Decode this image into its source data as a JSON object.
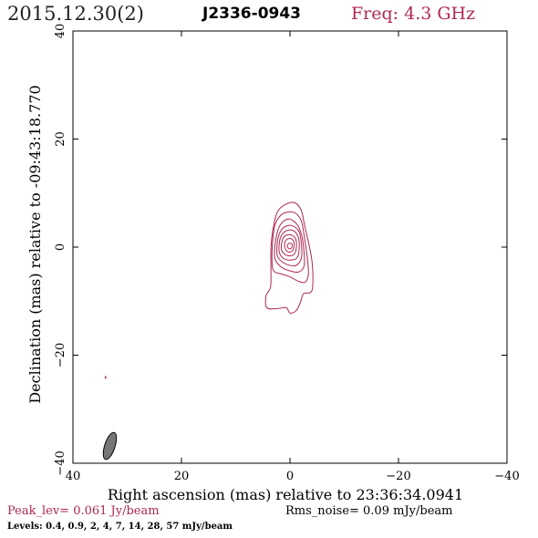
{
  "header": {
    "date": "2015.12.30(2)",
    "source": "J2336-0943",
    "frequency": "Freq: 4.3 GHz"
  },
  "footer": {
    "peak": "Peak_lev=  0.061 Jy/beam",
    "rms": "Rms_noise= 0.09 mJy/beam",
    "levels": "Levels: 0.4, 0.9,   2,   4,   7,  14,  28,  57 mJy/beam"
  },
  "colors": {
    "contour": "#b0284f",
    "frequency_text": "#b0284f",
    "peak_text": "#b0284f",
    "beam_fill": "#777777",
    "axis": "#000000"
  },
  "chart_data": {
    "type": "contour",
    "xlabel": "Right ascension (mas) relative to 23:36:34.0941",
    "ylabel": "Declination (mas) relative to -09:43:18.770",
    "xlim": [
      40,
      -40
    ],
    "ylim": [
      -40,
      40
    ],
    "xticks": [
      40,
      20,
      0,
      -20,
      -40
    ],
    "yticks": [
      -40,
      -20,
      0,
      20,
      40
    ],
    "xtick_labels": [
      "40",
      "20",
      "0",
      "−20",
      "−40"
    ],
    "ytick_labels": [
      "−40",
      "−20",
      "0",
      "20",
      "40"
    ],
    "contour_levels_mjy": [
      0.4,
      0.9,
      2,
      4,
      7,
      14,
      28,
      57
    ],
    "peak_jy_per_beam": 0.061,
    "rms_noise_mjy_per_beam": 0.09,
    "source_component": {
      "ra_mas": 0,
      "dec_mas": 0
    },
    "contours": [
      {
        "level": 0.4,
        "points": [
          [
            3.5,
            -5
          ],
          [
            3.5,
            0
          ],
          [
            3,
            4
          ],
          [
            2,
            7
          ],
          [
            -0.5,
            8.3
          ],
          [
            -2,
            7
          ],
          [
            -2.7,
            4
          ],
          [
            -3.6,
            0
          ],
          [
            -4.1,
            -3
          ],
          [
            -4.2,
            -7
          ],
          [
            -3.8,
            -8.4
          ],
          [
            -2.5,
            -8.6
          ],
          [
            -2,
            -10
          ],
          [
            -1.2,
            -11.7
          ],
          [
            0,
            -12.2
          ],
          [
            0.7,
            -11.2
          ],
          [
            2.5,
            -11.4
          ],
          [
            4.3,
            -11.2
          ],
          [
            4.4,
            -9
          ],
          [
            3.6,
            -7.5
          ]
        ]
      },
      {
        "level": 0.9,
        "points": [
          [
            3.3,
            -3
          ],
          [
            3.2,
            1
          ],
          [
            2.7,
            4.3
          ],
          [
            1.3,
            6.2
          ],
          [
            -0.8,
            6.4
          ],
          [
            -2.1,
            4.8
          ],
          [
            -2.7,
            1.5
          ],
          [
            -3.2,
            -2
          ],
          [
            -3.4,
            -5
          ],
          [
            -2.8,
            -6.5
          ],
          [
            -1.5,
            -6.3
          ],
          [
            0,
            -5.5
          ],
          [
            1.5,
            -5
          ],
          [
            2.9,
            -4.5
          ]
        ]
      },
      {
        "level": 2,
        "points": [
          [
            2.8,
            -2
          ],
          [
            2.6,
            1.5
          ],
          [
            1.8,
            4.1
          ],
          [
            0.3,
            5.2
          ],
          [
            -1.3,
            4.2
          ],
          [
            -2.2,
            2
          ],
          [
            -2.6,
            -1
          ],
          [
            -2.6,
            -3.5
          ],
          [
            -1.6,
            -4.6
          ],
          [
            0,
            -4.4
          ],
          [
            1.6,
            -3.7
          ]
        ]
      },
      {
        "level": 4,
        "points": [
          [
            2.4,
            -1.2
          ],
          [
            2.2,
            1.7
          ],
          [
            1.3,
            3.5
          ],
          [
            -0.2,
            4
          ],
          [
            -1.6,
            3
          ],
          [
            -2.1,
            0.7
          ],
          [
            -2.1,
            -2
          ],
          [
            -1.1,
            -3.4
          ],
          [
            0.6,
            -3.2
          ],
          [
            1.8,
            -2.4
          ]
        ]
      },
      {
        "level": 7,
        "points": [
          [
            2,
            -0.8
          ],
          [
            1.8,
            1.6
          ],
          [
            0.9,
            2.9
          ],
          [
            -0.5,
            3.1
          ],
          [
            -1.5,
            1.9
          ],
          [
            -1.7,
            -0.3
          ],
          [
            -1.3,
            -2
          ],
          [
            0,
            -2.4
          ],
          [
            1.3,
            -2
          ]
        ]
      },
      {
        "level": 14,
        "points": [
          [
            1.6,
            -0.2
          ],
          [
            1.3,
            1.6
          ],
          [
            0.3,
            2.3
          ],
          [
            -0.9,
            1.8
          ],
          [
            -1.2,
            0.3
          ],
          [
            -0.8,
            -1.3
          ],
          [
            0.3,
            -1.6
          ],
          [
            1.2,
            -1.1
          ]
        ]
      },
      {
        "level": 28,
        "points": [
          [
            1,
            0.3
          ],
          [
            0.7,
            1.3
          ],
          [
            -0.1,
            1.6
          ],
          [
            -0.7,
            1
          ],
          [
            -0.7,
            -0.2
          ],
          [
            -0.1,
            -0.9
          ],
          [
            0.6,
            -0.7
          ]
        ]
      },
      {
        "level": 57,
        "points": [
          [
            0.5,
            0.2
          ],
          [
            0.2,
            0.7
          ],
          [
            -0.3,
            0.6
          ],
          [
            -0.4,
            0.1
          ],
          [
            -0.1,
            -0.3
          ],
          [
            0.3,
            -0.2
          ]
        ]
      }
    ],
    "stray_mark": {
      "ra_mas": 34,
      "dec_mas": -24.2
    },
    "beam": {
      "ra_mas": 33.2,
      "dec_mas": -36.8,
      "major_mas": 5.2,
      "minor_mas": 1.9,
      "pa_deg": -18
    }
  }
}
